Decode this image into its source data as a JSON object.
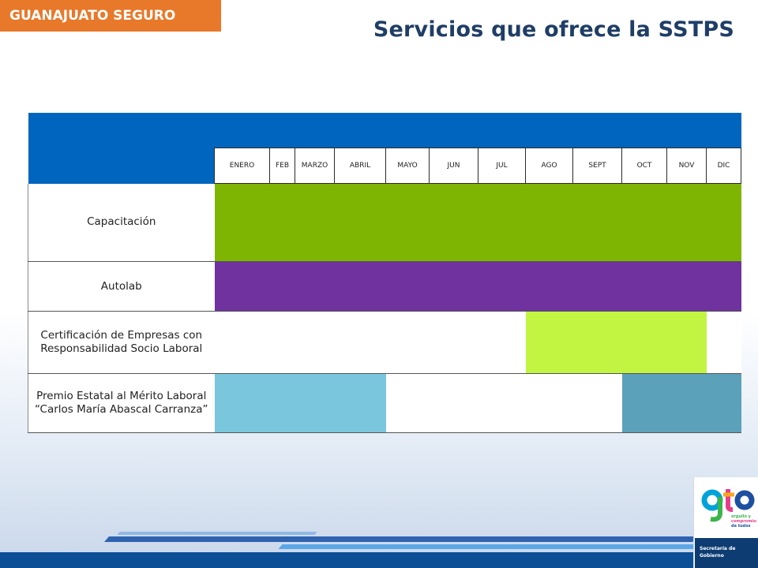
{
  "header": {
    "badge": "GUANAJUATO SEGURO",
    "title": "Servicios que ofrece la SSTPS"
  },
  "table": {
    "months": [
      "ENERO",
      "FEB",
      "MARZO",
      "ABRIL",
      "MAYO",
      "JUN",
      "JUL",
      "AGO",
      "SEPT",
      "OCT",
      "NOV",
      "DIC"
    ],
    "rows": [
      {
        "label": "Capacitación",
        "color": "#7eb503"
      },
      {
        "label": "Autolab",
        "color": "#6f329f"
      },
      {
        "label": "Certificación de Empresas con Responsabilidad Socio Laboral",
        "color": "#c2f542"
      },
      {
        "label": "Premio Estatal al Mérito Laboral “Carlos María Abascal Carranza”",
        "color": "#79c6dd",
        "color_secondary": "#5ca1ba"
      }
    ]
  },
  "colors": {
    "badge_orange": "#e8782a",
    "title_navy": "#1f3e66",
    "header_blue": "#0065bf"
  },
  "logo": {
    "text": "gto",
    "tagline": "orgullo y compromiso de todos",
    "org": "Secretaría de Gobierno"
  }
}
